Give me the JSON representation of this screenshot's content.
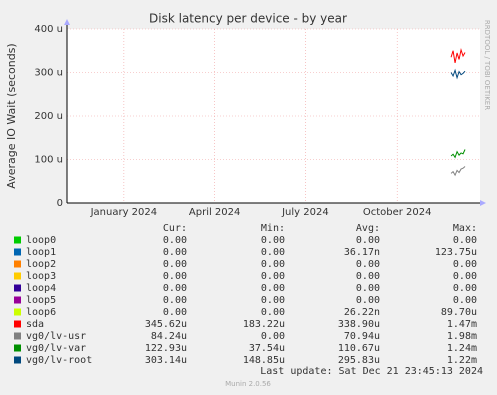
{
  "chart_data": {
    "type": "line",
    "title": "Disk latency per device - by year",
    "y_label": "Average IO Wait (seconds)",
    "side_text": "RRDTOOL / TOBI OETIKER",
    "ylim": [
      0,
      400
    ],
    "yticks": [
      0,
      {
        "value": 100,
        "label": "100 u"
      },
      {
        "value": 200,
        "label": "200 u"
      },
      {
        "value": 300,
        "label": "300 u"
      },
      {
        "value": 400,
        "label": "400 u"
      }
    ],
    "xlim": [
      "2023-11-05",
      "2024-12-23"
    ],
    "xticks": [
      {
        "value": "2024-01-01",
        "label": "January 2024"
      },
      {
        "value": "2024-04-01",
        "label": "April 2024"
      },
      {
        "value": "2024-07-01",
        "label": "July 2024"
      },
      {
        "value": "2024-10-01",
        "label": "October 2024"
      }
    ],
    "grid": true,
    "x": [
      "2024-11-24",
      "2024-11-26",
      "2024-11-28",
      "2024-11-30",
      "2024-12-02",
      "2024-12-04",
      "2024-12-06",
      "2024-12-08"
    ],
    "stat_headers": [
      "Cur:",
      "Min:",
      "Avg:",
      "Max:"
    ],
    "series": [
      {
        "name": "loop0",
        "color": "#00cc00",
        "values": [
          0,
          0,
          0,
          0,
          0,
          0,
          0,
          0
        ],
        "stats": [
          "0.00",
          "0.00",
          "0.00",
          "0.00"
        ]
      },
      {
        "name": "loop1",
        "color": "#0066b3",
        "values": [
          0,
          0,
          0,
          0,
          0,
          0,
          0,
          0
        ],
        "stats": [
          "0.00",
          "0.00",
          "36.17n",
          "123.75u"
        ]
      },
      {
        "name": "loop2",
        "color": "#ff8000",
        "values": [
          0,
          0,
          0,
          0,
          0,
          0,
          0,
          0
        ],
        "stats": [
          "0.00",
          "0.00",
          "0.00",
          "0.00"
        ]
      },
      {
        "name": "loop3",
        "color": "#ffcc00",
        "values": [
          0,
          0,
          0,
          0,
          0,
          0,
          0,
          0
        ],
        "stats": [
          "0.00",
          "0.00",
          "0.00",
          "0.00"
        ]
      },
      {
        "name": "loop4",
        "color": "#330099",
        "values": [
          0,
          0,
          0,
          0,
          0,
          0,
          0,
          0
        ],
        "stats": [
          "0.00",
          "0.00",
          "0.00",
          "0.00"
        ]
      },
      {
        "name": "loop5",
        "color": "#990099",
        "values": [
          0,
          0,
          0,
          0,
          0,
          0,
          0,
          0
        ],
        "stats": [
          "0.00",
          "0.00",
          "0.00",
          "0.00"
        ]
      },
      {
        "name": "loop6",
        "color": "#ccff00",
        "values": [
          0,
          0,
          0,
          0,
          0,
          0,
          0,
          0
        ],
        "stats": [
          "0.00",
          "0.00",
          "26.22n",
          "89.70u"
        ]
      },
      {
        "name": "sda",
        "color": "#ff0000",
        "values": [
          335,
          350,
          322,
          345,
          330,
          352,
          338,
          346
        ],
        "stats": [
          "345.62u",
          "183.22u",
          "338.90u",
          "1.47m"
        ]
      },
      {
        "name": "vg0/lv-usr",
        "color": "#808080",
        "values": [
          68,
          72,
          64,
          75,
          70,
          78,
          80,
          84
        ],
        "stats": [
          "84.24u",
          "0.00",
          "70.94u",
          "1.98m"
        ]
      },
      {
        "name": "vg0/lv-var",
        "color": "#008f00",
        "values": [
          108,
          112,
          105,
          118,
          110,
          115,
          113,
          123
        ],
        "stats": [
          "122.93u",
          "37.54u",
          "110.67u",
          "1.24m"
        ]
      },
      {
        "name": "vg0/lv-root",
        "color": "#00487d",
        "values": [
          300,
          292,
          305,
          288,
          302,
          295,
          298,
          303
        ],
        "stats": [
          "303.14u",
          "148.85u",
          "295.83u",
          "1.22m"
        ]
      }
    ],
    "last_update": "Last update: Sat Dec 21 23:45:13 2024",
    "footer": "Munin 2.0.56"
  }
}
